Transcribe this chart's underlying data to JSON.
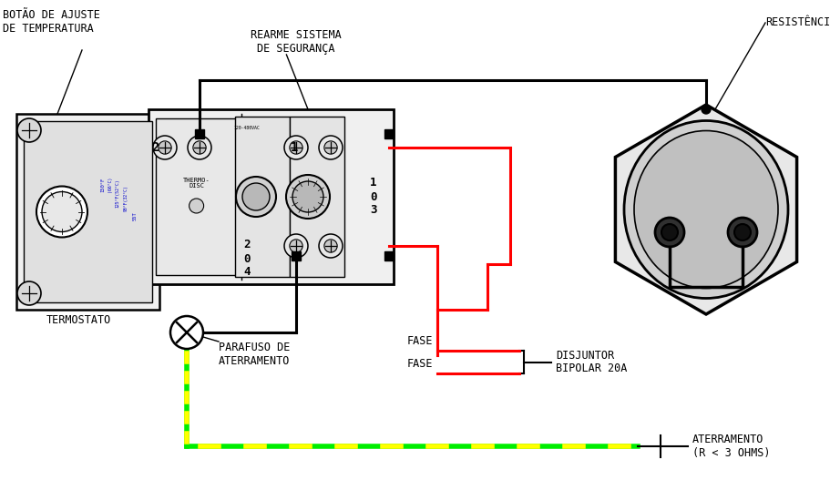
{
  "bg": "#ffffff",
  "blk": "#000000",
  "red": "#ff0000",
  "grn": "#00ee00",
  "yel": "#ffff00",
  "lgray": "#e8e8e8",
  "mgray": "#c8c8c8",
  "dgray": "#a0a0a0",
  "labels": {
    "botao": "BOTÃO DE AJUSTE\nDE TEMPERATURA",
    "termostato": "TERMOSTATO",
    "rearme": "REARME SISTEMA\nDE SEGURANÇA",
    "parafuso": "PARAFUSO DE\nATERRAMENTO",
    "fase1": "FASE",
    "fase2": "FASE",
    "disjuntor": "DISJUNTOR\nBIPOLAR 20A",
    "resistencia": "RESISTÊNCIA",
    "aterramento": "ATERRAMENTO\n(R < 3 OHMS)"
  },
  "fs": 8.5
}
